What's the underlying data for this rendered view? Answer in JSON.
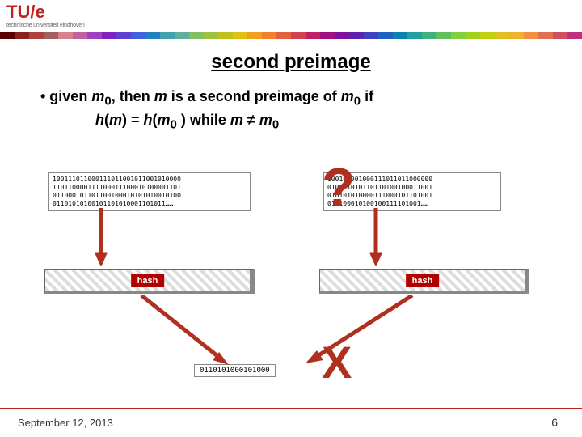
{
  "logo": {
    "main": "TU/e",
    "sub": "technische universiteit eindhoven"
  },
  "stripe_colors": [
    "#5a0000",
    "#8c2020",
    "#b04040",
    "#a06060",
    "#d88090",
    "#c060a0",
    "#a040c0",
    "#8020c0",
    "#6040d0",
    "#4060e0",
    "#2080c0",
    "#40a0b0",
    "#60b0a0",
    "#80c060",
    "#a0c040",
    "#c0c020",
    "#e0c010",
    "#f0a020",
    "#f08030",
    "#e06040",
    "#d04050",
    "#c02060",
    "#a01080",
    "#8010a0",
    "#6020b0",
    "#4040c0",
    "#2060c0",
    "#1080b0",
    "#20a0a0",
    "#40b080",
    "#60c060",
    "#80d040",
    "#a0d020",
    "#c0d010",
    "#e0c020",
    "#f0b030",
    "#f09040",
    "#e07050",
    "#d05060",
    "#c03080"
  ],
  "title": "second preimage",
  "bullet": {
    "prefix": "•   given ",
    "m0": "m",
    "sub0": "0",
    "mid1": ", then ",
    "m": "m",
    "mid2": " is a second preimage of ",
    "m0b": "m",
    "sub0b": "0",
    "suffix": " if"
  },
  "bullet_sub": {
    "h1": "h",
    "p1": "(",
    "m1": "m",
    "p2": ") = ",
    "h2": "h",
    "p3": "(",
    "m2": "m",
    "sub2": "0",
    "p4": " )   while  ",
    "m3": "m",
    "neq": " ≠ ",
    "m4": "m",
    "sub4": "0"
  },
  "binary_left": "100111011000111011001011001010000\n110110000111100011100010100001101\n011000101101100100010101010010100\n01101010100101101010001101011……",
  "binary_right": "100101001000111011011000000\n010011010110110100100011001\n010101010000111000101101001\n010100010100100111101001……",
  "hash_label": "hash",
  "output_binary": "0110101000101000",
  "question_mark": "?",
  "converge": "X",
  "footer": {
    "date": "September 12, 2013",
    "page": "6"
  },
  "colors": {
    "accent": "#c02020",
    "arrow": "#b03020",
    "hash_bg": "#b00000",
    "text": "#000000"
  }
}
